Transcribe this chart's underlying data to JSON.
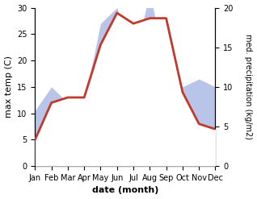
{
  "months": [
    "Jan",
    "Feb",
    "Mar",
    "Apr",
    "May",
    "Jun",
    "Jul",
    "Aug",
    "Sep",
    "Oct",
    "Nov",
    "Dec"
  ],
  "temp": [
    5,
    12,
    13,
    13,
    23,
    29,
    27,
    28,
    28,
    14,
    8,
    7
  ],
  "precip": [
    7,
    10,
    8,
    8,
    18,
    20,
    13,
    22,
    12,
    10,
    11,
    10
  ],
  "temp_color": "#c0392b",
  "precip_color_fill": "#b8c4e8",
  "ylim_temp": [
    0,
    30
  ],
  "ylim_precip": [
    0,
    20
  ],
  "xlabel": "date (month)",
  "ylabel_left": "max temp (C)",
  "ylabel_right": "med. precipitation (kg/m2)",
  "yticks_temp": [
    0,
    5,
    10,
    15,
    20,
    25,
    30
  ],
  "yticks_precip": [
    0,
    5,
    10,
    15,
    20
  ],
  "bg_color": "#ffffff",
  "temp_linewidth": 2.0,
  "label_fontsize": 8,
  "tick_fontsize": 7
}
